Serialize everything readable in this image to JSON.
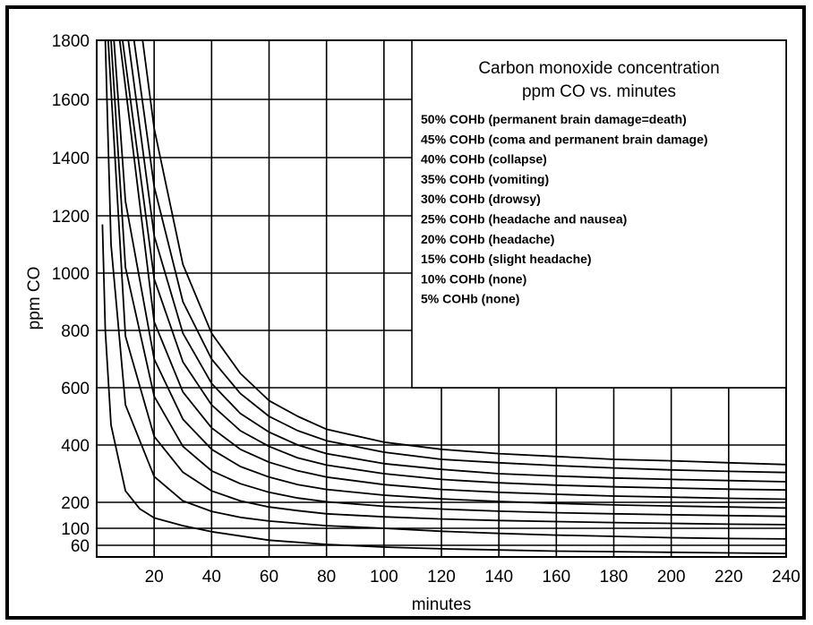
{
  "chart_data": {
    "type": "line",
    "title": "Carbon monoxide concentration",
    "subtitle": "ppm CO vs. minutes",
    "xlabel": "minutes",
    "ylabel": "ppm CO",
    "xlim": [
      0,
      240
    ],
    "ylim": [
      40,
      1800
    ],
    "x_ticks": [
      "20",
      "40",
      "60",
      "80",
      "100",
      "120",
      "140",
      "160",
      "180",
      "200",
      "220",
      "240"
    ],
    "y_ticks": [
      "1800",
      "1600",
      "1400",
      "1200",
      "1000",
      "800",
      "600",
      "400",
      "200",
      "100",
      "60"
    ],
    "grid": true,
    "legend_placement": "top-right",
    "legend": [
      "50%  COHb (permanent brain damage=death)",
      "45%  COHb (coma and permanent brain damage)",
      "40%  COHb (collapse)",
      "35%  COHb (vomiting)",
      "30%  COHb (drowsy)",
      "25%  COHb (headache and nausea)",
      "20%  COHb (headache)",
      "15%  COHb (slight headache)",
      "10%  COHb (none)",
      " 5%  COHb (none)"
    ],
    "series": [
      {
        "name": "50%",
        "x": [
          16,
          20,
          30,
          40,
          50,
          60,
          70,
          80,
          100,
          120,
          140,
          160,
          180,
          200,
          220,
          240
        ],
        "y": [
          1800,
          1500,
          1030,
          790,
          650,
          555,
          500,
          455,
          410,
          385,
          370,
          360,
          350,
          345,
          338,
          332
        ]
      },
      {
        "name": "45%",
        "x": [
          13,
          20,
          30,
          40,
          50,
          60,
          70,
          80,
          100,
          120,
          140,
          160,
          180,
          200,
          220,
          240
        ],
        "y": [
          1800,
          1300,
          900,
          700,
          580,
          500,
          450,
          415,
          375,
          350,
          338,
          328,
          320,
          313,
          308,
          304
        ]
      },
      {
        "name": "40%",
        "x": [
          11,
          20,
          30,
          40,
          50,
          60,
          70,
          80,
          100,
          120,
          140,
          160,
          180,
          200,
          220,
          240
        ],
        "y": [
          1800,
          1130,
          790,
          615,
          510,
          445,
          400,
          370,
          335,
          315,
          300,
          292,
          285,
          280,
          276,
          272
        ]
      },
      {
        "name": "35%",
        "x": [
          9,
          20,
          30,
          40,
          50,
          60,
          70,
          80,
          100,
          120,
          140,
          160,
          180,
          200,
          220,
          240
        ],
        "y": [
          1800,
          980,
          690,
          540,
          450,
          395,
          355,
          330,
          300,
          280,
          268,
          260,
          254,
          250,
          246,
          243
        ]
      },
      {
        "name": "30%",
        "x": [
          8,
          20,
          30,
          40,
          50,
          60,
          70,
          80,
          100,
          120,
          140,
          160,
          180,
          200,
          220,
          240
        ],
        "y": [
          1800,
          830,
          585,
          460,
          385,
          340,
          310,
          288,
          262,
          245,
          235,
          228,
          222,
          218,
          214,
          211
        ]
      },
      {
        "name": "25%",
        "x": [
          6,
          10,
          20,
          30,
          40,
          50,
          60,
          70,
          80,
          100,
          120,
          140,
          160,
          180,
          200,
          220,
          240
        ],
        "y": [
          1800,
          1250,
          700,
          490,
          385,
          325,
          288,
          262,
          245,
          225,
          212,
          203,
          196,
          190,
          186,
          182,
          178
        ]
      },
      {
        "name": "20%",
        "x": [
          5,
          10,
          20,
          30,
          40,
          50,
          60,
          70,
          80,
          100,
          120,
          140,
          160,
          180,
          200,
          220,
          240
        ],
        "y": [
          1800,
          1020,
          570,
          395,
          310,
          265,
          235,
          215,
          202,
          185,
          174,
          166,
          160,
          156,
          152,
          149,
          146
        ]
      },
      {
        "name": "15%",
        "x": [
          4,
          10,
          20,
          30,
          40,
          50,
          60,
          70,
          80,
          100,
          120,
          140,
          160,
          180,
          200,
          220,
          240
        ],
        "y": [
          1800,
          780,
          430,
          305,
          240,
          205,
          182,
          168,
          156,
          144,
          136,
          130,
          126,
          122,
          119,
          116,
          114
        ]
      },
      {
        "name": "10%",
        "x": [
          3,
          5,
          10,
          20,
          30,
          40,
          50,
          60,
          80,
          100,
          120,
          140,
          160,
          180,
          200,
          220,
          240
        ],
        "y": [
          1800,
          1100,
          540,
          290,
          205,
          165,
          142,
          128,
          110,
          100,
          93,
          88,
          84,
          81,
          78,
          76,
          75
        ]
      },
      {
        "name": "5%",
        "x": [
          2,
          3,
          5,
          10,
          15,
          20,
          30,
          40,
          60,
          80,
          100,
          120,
          140,
          160,
          180,
          200,
          220,
          240
        ],
        "y": [
          1170,
          800,
          470,
          240,
          175,
          140,
          110,
          92,
          72,
          62,
          57,
          54,
          52,
          50,
          49,
          48,
          47,
          46
        ]
      }
    ]
  }
}
